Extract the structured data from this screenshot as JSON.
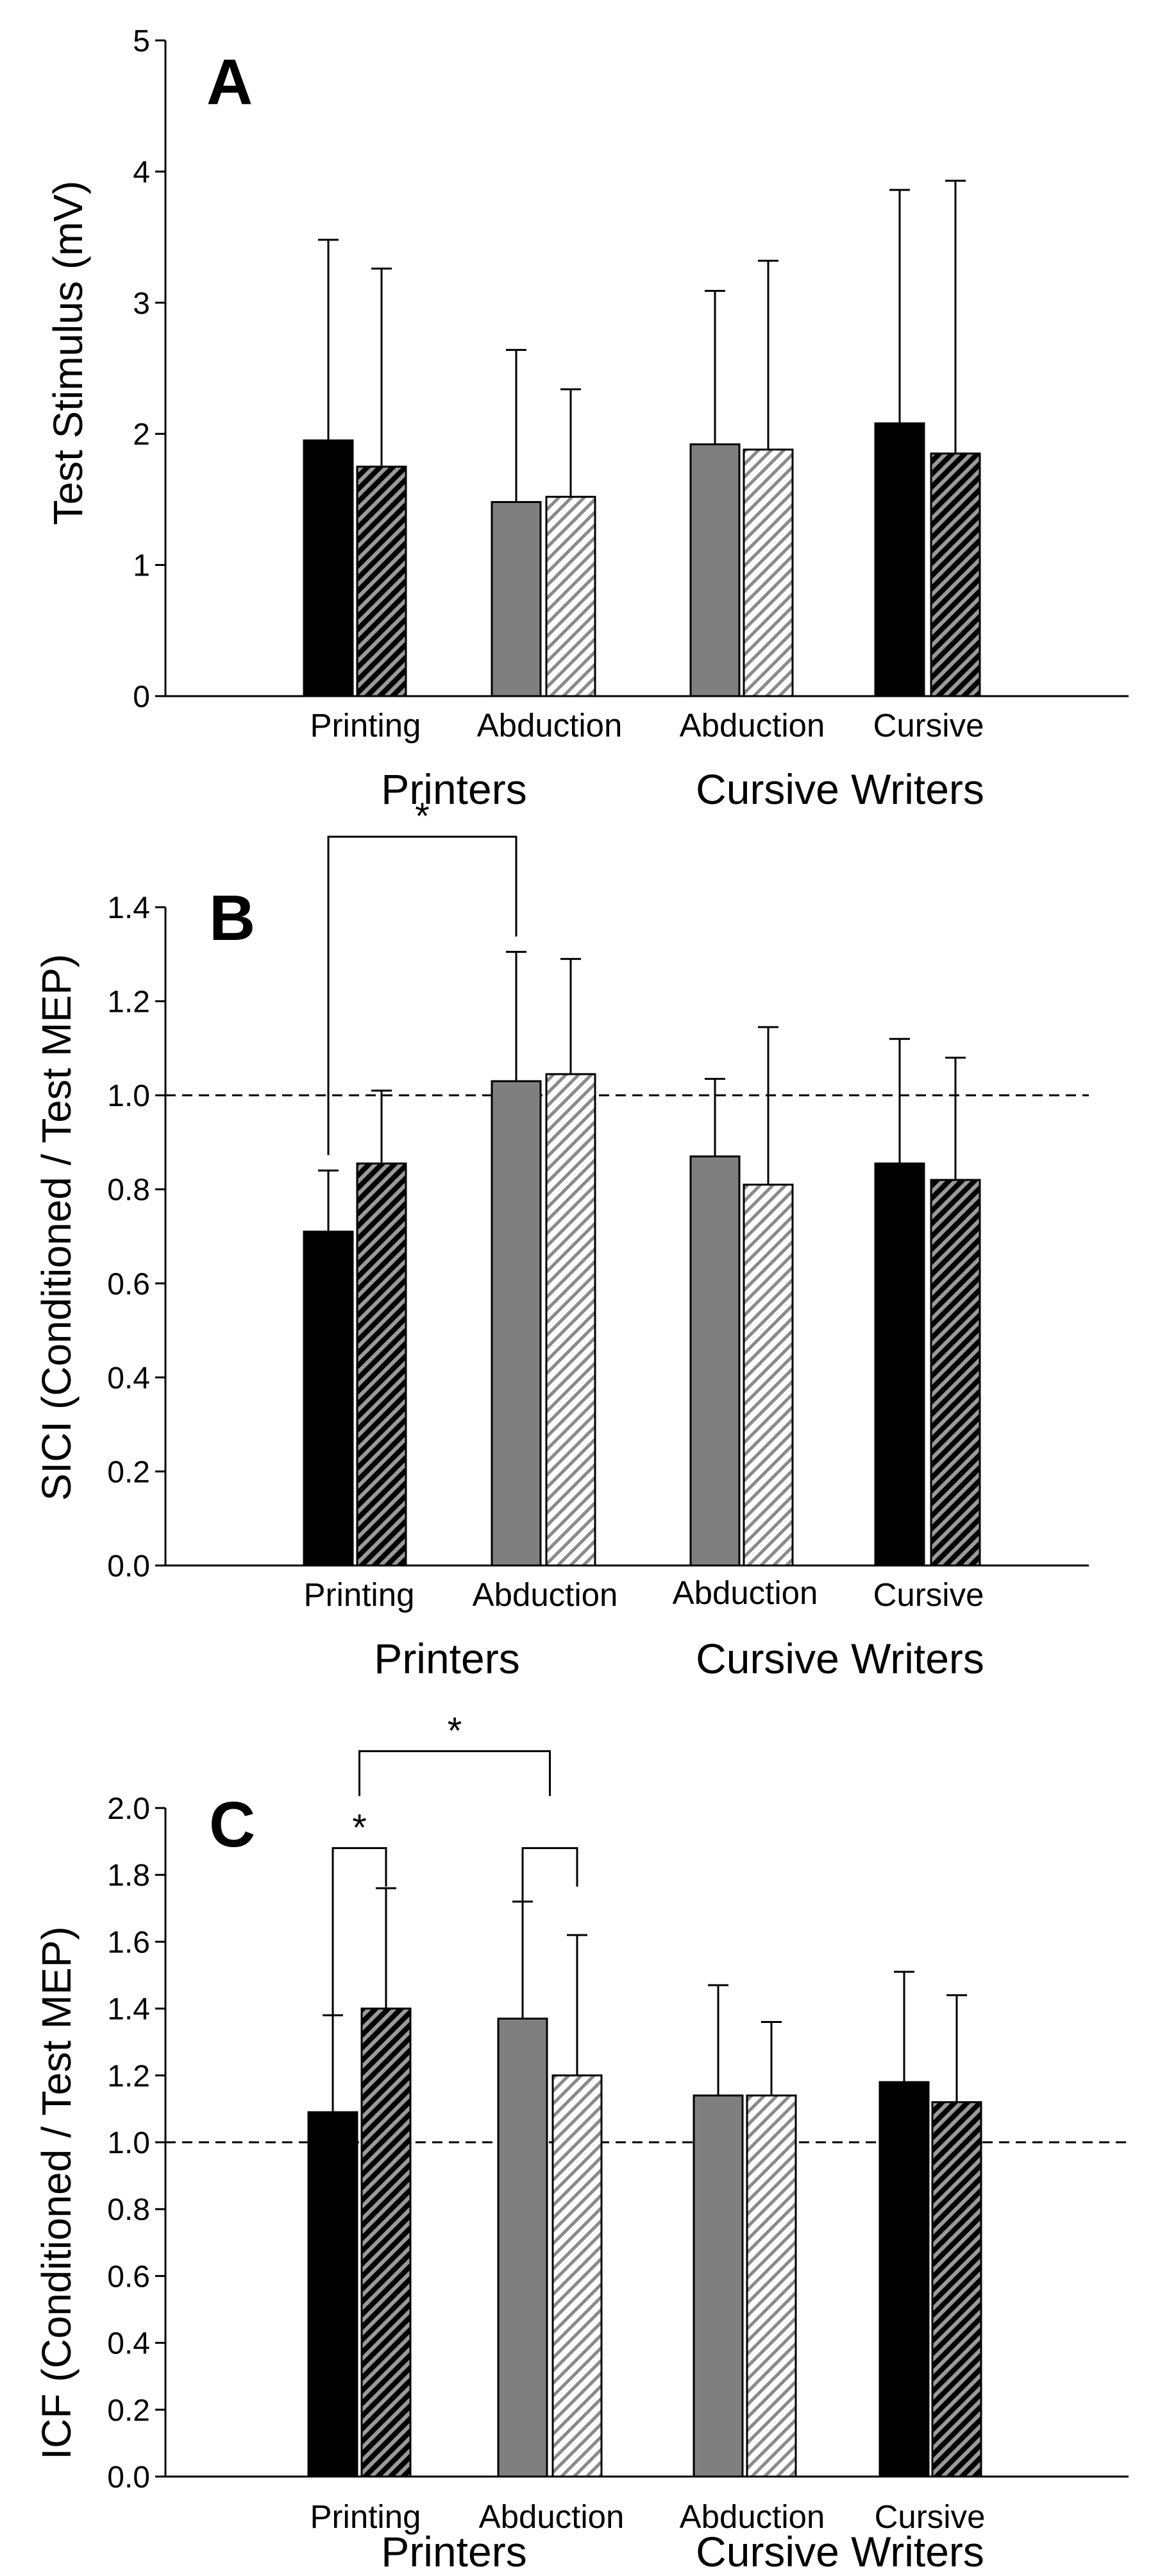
{
  "colors": {
    "black": "#000000",
    "gray": "#7f7f7f",
    "white": "#ffffff"
  },
  "chart_data": [
    {
      "panel": "A",
      "type": "bar",
      "ylabel": "Test Stimulus (mV)",
      "ylim": [
        0,
        5
      ],
      "yticks": [
        "0",
        "1",
        "2",
        "3",
        "4",
        "5"
      ],
      "categories": [
        "Printing",
        "Abduction",
        "Abduction",
        "Cursive"
      ],
      "groups": [
        "Printers",
        "Cursive Writers"
      ],
      "bar_styles": [
        [
          "black-solid",
          "dark-hatched"
        ],
        [
          "gray-solid",
          "light-hatched"
        ],
        [
          "gray-solid",
          "light-hatched"
        ],
        [
          "black-solid",
          "dark-hatched"
        ]
      ],
      "values": [
        [
          1.95,
          1.75
        ],
        [
          1.48,
          1.52
        ],
        [
          1.92,
          1.88
        ],
        [
          2.08,
          1.85
        ]
      ],
      "errors": [
        [
          1.53,
          1.51
        ],
        [
          1.16,
          0.82
        ],
        [
          1.17,
          1.44
        ],
        [
          1.78,
          2.08
        ]
      ],
      "reference_line": null,
      "significance": []
    },
    {
      "panel": "B",
      "type": "bar",
      "ylabel": "SICI (Conditioned / Test MEP)",
      "ylim": [
        0,
        1.4
      ],
      "yticks": [
        "0.0",
        "0.2",
        "0.4",
        "0.6",
        "0.8",
        "1.0",
        "1.2",
        "1.4"
      ],
      "categories": [
        "Printing",
        "Abduction",
        "Abduction",
        "Cursive"
      ],
      "groups": [
        "Printers",
        "Cursive Writers"
      ],
      "bar_styles": [
        [
          "black-solid",
          "dark-hatched"
        ],
        [
          "gray-solid",
          "light-hatched"
        ],
        [
          "gray-solid",
          "light-hatched"
        ],
        [
          "black-solid",
          "dark-hatched"
        ]
      ],
      "values": [
        [
          0.71,
          0.855
        ],
        [
          1.03,
          1.045
        ],
        [
          0.87,
          0.81
        ],
        [
          0.855,
          0.82
        ]
      ],
      "errors": [
        [
          0.13,
          0.155
        ],
        [
          0.275,
          0.245
        ],
        [
          0.165,
          0.335
        ],
        [
          0.265,
          0.26
        ]
      ],
      "reference_line": 1.0,
      "significance": [
        {
          "from": [
            0,
            0
          ],
          "to": [
            1,
            0
          ],
          "label": "*",
          "level": 1.55
        }
      ]
    },
    {
      "panel": "C",
      "type": "bar",
      "ylabel": "ICF (Conditioned / Test MEP)",
      "ylim": [
        0,
        2.0
      ],
      "yticks": [
        "0.0",
        "0.2",
        "0.4",
        "0.6",
        "0.8",
        "1.0",
        "1.2",
        "1.4",
        "1.6",
        "1.8",
        "2.0"
      ],
      "categories": [
        "Printing",
        "Abduction",
        "Abduction",
        "Cursive"
      ],
      "groups": [
        "Printers",
        "Cursive Writers"
      ],
      "bar_styles": [
        [
          "black-solid",
          "dark-hatched"
        ],
        [
          "gray-solid",
          "light-hatched"
        ],
        [
          "gray-solid",
          "light-hatched"
        ],
        [
          "black-solid",
          "dark-hatched"
        ]
      ],
      "values": [
        [
          1.09,
          1.4
        ],
        [
          1.37,
          1.2
        ],
        [
          1.14,
          1.14
        ],
        [
          1.18,
          1.12
        ]
      ],
      "errors": [
        [
          0.29,
          0.36
        ],
        [
          0.35,
          0.42
        ],
        [
          0.33,
          0.22
        ],
        [
          0.33,
          0.32
        ]
      ],
      "reference_line": 1.0,
      "significance": [
        {
          "from": [
            0,
            0
          ],
          "to": [
            0,
            1
          ],
          "label": "*",
          "level": 1.88
        },
        {
          "from": [
            1,
            0
          ],
          "to": [
            1,
            1
          ],
          "label": "",
          "level": 1.88
        },
        {
          "from": [
            0,
            0.5
          ],
          "to": [
            1,
            0.5
          ],
          "label": "*",
          "level": 2.17
        }
      ]
    }
  ]
}
